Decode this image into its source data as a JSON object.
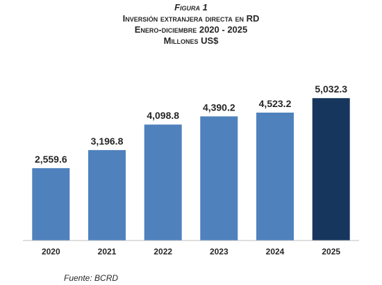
{
  "figure_label": "Figura 1",
  "title_line1": "Inversión extranjera directa en RD",
  "title_line2": "Enero-diciembre 2020 - 2025",
  "title_line3": "Millones US$",
  "source": "Fuente: BCRD",
  "chart_data": {
    "type": "bar",
    "title": "Inversión extranjera directa en RD",
    "subtitle": "Enero-diciembre 2020 - 2025",
    "ylabel": "Millones US$",
    "xlabel": "",
    "categories": [
      "2020",
      "2021",
      "2022",
      "2023",
      "2024",
      "2025"
    ],
    "values": [
      2559.6,
      3196.8,
      4098.8,
      4390.2,
      4523.2,
      5032.3
    ],
    "data_labels": [
      "2,559.6",
      "3,196.8",
      "4,098.8",
      "4,390.2",
      "4,523.2",
      "5,032.3"
    ],
    "colors": [
      "#4f81bd",
      "#4f81bd",
      "#4f81bd",
      "#4f81bd",
      "#4f81bd",
      "#17365d"
    ],
    "ylim": [
      0,
      5800
    ],
    "grid": false,
    "legend": "none"
  }
}
